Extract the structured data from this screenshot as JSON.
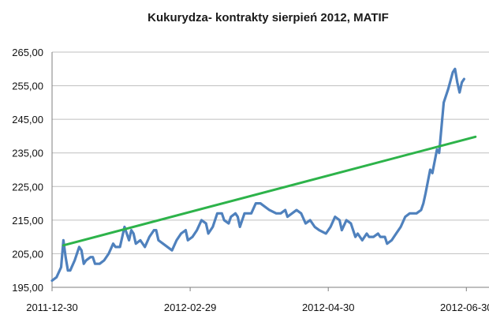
{
  "chart_data": {
    "type": "line",
    "title": "Kukurydza- kontrakty sierpień 2012, MATIF",
    "xlabel": "",
    "ylabel": "",
    "ylim": [
      195,
      265
    ],
    "y_ticks": [
      "195,00",
      "205,00",
      "215,00",
      "225,00",
      "235,00",
      "245,00",
      "255,00",
      "265,00"
    ],
    "y_tick_values": [
      195,
      205,
      215,
      225,
      235,
      245,
      255,
      265
    ],
    "x_ticks": [
      "2011-12-30",
      "2012-02-29",
      "2012-04-30",
      "2012-06-30"
    ],
    "xlim": [
      "2011-12-30",
      "2012-07-10"
    ],
    "grid": "horizontal",
    "legend": "none",
    "series": [
      {
        "color": "#4f81bd",
        "points": [
          [
            "2011-12-30",
            197.0
          ],
          [
            "2012-01-01",
            198.0
          ],
          [
            "2012-01-03",
            201.0
          ],
          [
            "2012-01-04",
            209.0
          ],
          [
            "2012-01-05",
            204.0
          ],
          [
            "2012-01-06",
            200.0
          ],
          [
            "2012-01-07",
            200.0
          ],
          [
            "2012-01-09",
            203.0
          ],
          [
            "2012-01-11",
            207.0
          ],
          [
            "2012-01-12",
            206.0
          ],
          [
            "2012-01-13",
            202.0
          ],
          [
            "2012-01-14",
            203.0
          ],
          [
            "2012-01-16",
            204.0
          ],
          [
            "2012-01-17",
            204.0
          ],
          [
            "2012-01-18",
            202.0
          ],
          [
            "2012-01-20",
            202.0
          ],
          [
            "2012-01-22",
            203.0
          ],
          [
            "2012-01-24",
            205.0
          ],
          [
            "2012-01-26",
            208.0
          ],
          [
            "2012-01-27",
            207.0
          ],
          [
            "2012-01-29",
            207.0
          ],
          [
            "2012-01-30",
            210.0
          ],
          [
            "2012-01-31",
            213.0
          ],
          [
            "2012-02-01",
            211.0
          ],
          [
            "2012-02-02",
            209.0
          ],
          [
            "2012-02-03",
            212.0
          ],
          [
            "2012-02-04",
            211.0
          ],
          [
            "2012-02-05",
            208.0
          ],
          [
            "2012-02-07",
            209.0
          ],
          [
            "2012-02-09",
            207.0
          ],
          [
            "2012-02-11",
            210.0
          ],
          [
            "2012-02-13",
            212.0
          ],
          [
            "2012-02-14",
            212.0
          ],
          [
            "2012-02-15",
            209.0
          ],
          [
            "2012-02-17",
            208.0
          ],
          [
            "2012-02-19",
            207.0
          ],
          [
            "2012-02-21",
            206.0
          ],
          [
            "2012-02-23",
            209.0
          ],
          [
            "2012-02-25",
            211.0
          ],
          [
            "2012-02-27",
            212.0
          ],
          [
            "2012-02-28",
            209.0
          ],
          [
            "2012-03-01",
            210.0
          ],
          [
            "2012-03-03",
            212.0
          ],
          [
            "2012-03-05",
            215.0
          ],
          [
            "2012-03-07",
            214.0
          ],
          [
            "2012-03-08",
            211.0
          ],
          [
            "2012-03-10",
            213.0
          ],
          [
            "2012-03-12",
            217.0
          ],
          [
            "2012-03-14",
            217.0
          ],
          [
            "2012-03-15",
            215.0
          ],
          [
            "2012-03-17",
            214.0
          ],
          [
            "2012-03-18",
            216.0
          ],
          [
            "2012-03-20",
            217.0
          ],
          [
            "2012-03-21",
            216.0
          ],
          [
            "2012-03-22",
            213.0
          ],
          [
            "2012-03-24",
            217.0
          ],
          [
            "2012-03-26",
            217.0
          ],
          [
            "2012-03-27",
            217.0
          ],
          [
            "2012-03-29",
            220.0
          ],
          [
            "2012-03-31",
            220.0
          ],
          [
            "2012-04-02",
            219.0
          ],
          [
            "2012-04-04",
            218.0
          ],
          [
            "2012-04-07",
            217.0
          ],
          [
            "2012-04-09",
            217.0
          ],
          [
            "2012-04-11",
            218.0
          ],
          [
            "2012-04-12",
            216.0
          ],
          [
            "2012-04-14",
            217.0
          ],
          [
            "2012-04-16",
            218.0
          ],
          [
            "2012-04-18",
            217.0
          ],
          [
            "2012-04-20",
            214.0
          ],
          [
            "2012-04-22",
            215.0
          ],
          [
            "2012-04-24",
            213.0
          ],
          [
            "2012-04-26",
            212.0
          ],
          [
            "2012-04-29",
            211.0
          ],
          [
            "2012-05-01",
            213.0
          ],
          [
            "2012-05-03",
            216.0
          ],
          [
            "2012-05-05",
            215.0
          ],
          [
            "2012-05-06",
            212.0
          ],
          [
            "2012-05-08",
            215.0
          ],
          [
            "2012-05-10",
            214.0
          ],
          [
            "2012-05-12",
            210.0
          ],
          [
            "2012-05-13",
            211.0
          ],
          [
            "2012-05-15",
            209.0
          ],
          [
            "2012-05-17",
            211.0
          ],
          [
            "2012-05-18",
            210.0
          ],
          [
            "2012-05-20",
            210.0
          ],
          [
            "2012-05-22",
            211.0
          ],
          [
            "2012-05-23",
            210.0
          ],
          [
            "2012-05-25",
            210.0
          ],
          [
            "2012-05-26",
            208.0
          ],
          [
            "2012-05-28",
            209.0
          ],
          [
            "2012-05-30",
            211.0
          ],
          [
            "2012-06-01",
            213.0
          ],
          [
            "2012-06-03",
            216.0
          ],
          [
            "2012-06-05",
            217.0
          ],
          [
            "2012-06-08",
            217.0
          ],
          [
            "2012-06-10",
            218.0
          ],
          [
            "2012-06-11",
            220.0
          ],
          [
            "2012-06-12",
            223.0
          ],
          [
            "2012-06-14",
            230.0
          ],
          [
            "2012-06-15",
            229.0
          ],
          [
            "2012-06-17",
            236.0
          ],
          [
            "2012-06-18",
            235.0
          ],
          [
            "2012-06-20",
            250.0
          ],
          [
            "2012-06-22",
            254.0
          ],
          [
            "2012-06-24",
            259.0
          ],
          [
            "2012-06-25",
            260.0
          ],
          [
            "2012-06-26",
            256.0
          ],
          [
            "2012-06-27",
            253.0
          ],
          [
            "2012-06-28",
            256.0
          ],
          [
            "2012-06-29",
            257.0
          ]
        ]
      },
      {
        "color": "#2db34a",
        "type": "trendline",
        "points": [
          [
            "2012-01-04",
            207.5
          ],
          [
            "2012-07-04",
            239.8
          ]
        ]
      }
    ]
  }
}
